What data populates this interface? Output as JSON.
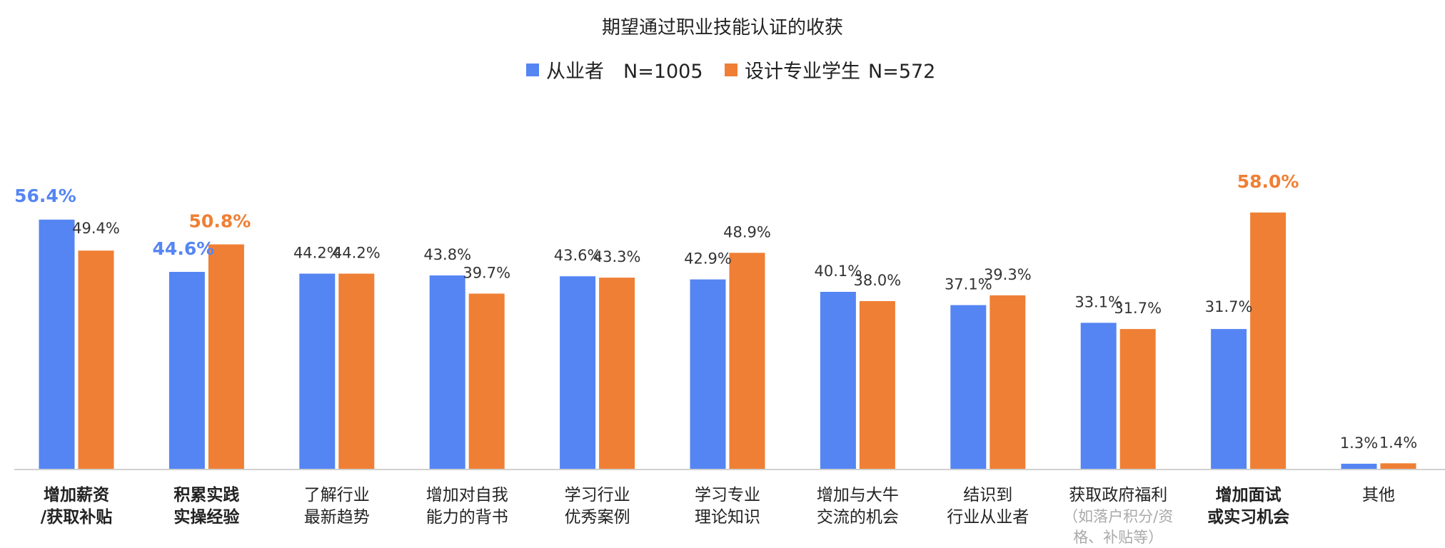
{
  "chart_data": {
    "type": "bar",
    "title": "期望通过职业技能认证的收获",
    "colors": {
      "practitioner": "#5585f3",
      "student": "#ef7f35"
    },
    "series": [
      {
        "name": "从业者 N=1005",
        "label": "从业者",
        "n": "N=1005",
        "color": "#5585f3",
        "values": [
          56.4,
          44.6,
          44.2,
          43.8,
          43.6,
          42.9,
          40.1,
          37.1,
          33.1,
          31.7,
          1.3
        ],
        "labels": [
          "56.4%",
          "44.6%",
          "44.2%",
          "43.8%",
          "43.6%",
          "42.9%",
          "40.1%",
          "37.1%",
          "33.1%",
          "31.7%",
          "1.3%"
        ]
      },
      {
        "name": "设计专业学生 N=572",
        "label": "设计专业学生",
        "n": "N=572",
        "color": "#ef7f35",
        "values": [
          49.4,
          50.8,
          44.2,
          39.7,
          43.3,
          48.9,
          38.0,
          39.3,
          31.7,
          58.0,
          1.4
        ],
        "labels": [
          "49.4%",
          "50.8%",
          "44.2%",
          "39.7%",
          "43.3%",
          "48.9%",
          "38.0%",
          "39.3%",
          "31.7%",
          "58.0%",
          "1.4%"
        ]
      }
    ],
    "categories": [
      {
        "lines": [
          "增加薪资",
          "/获取补贴"
        ],
        "bold": true,
        "note": []
      },
      {
        "lines": [
          "积累实践",
          "实操经验"
        ],
        "bold": true,
        "note": []
      },
      {
        "lines": [
          "了解行业",
          "最新趋势"
        ],
        "bold": false,
        "note": []
      },
      {
        "lines": [
          "增加对自我",
          "能力的背书"
        ],
        "bold": false,
        "note": []
      },
      {
        "lines": [
          "学习行业",
          "优秀案例"
        ],
        "bold": false,
        "note": []
      },
      {
        "lines": [
          "学习专业",
          "理论知识"
        ],
        "bold": false,
        "note": []
      },
      {
        "lines": [
          "增加与大牛",
          "交流的机会"
        ],
        "bold": false,
        "note": []
      },
      {
        "lines": [
          "结识到",
          "行业从业者"
        ],
        "bold": false,
        "note": []
      },
      {
        "lines": [
          "获取政府福利"
        ],
        "bold": false,
        "note": [
          "（如落户积分/资",
          "格、补贴等）"
        ]
      },
      {
        "lines": [
          "增加面试",
          "或实习机会"
        ],
        "bold": true,
        "note": []
      },
      {
        "lines": [
          "其他"
        ],
        "bold": false,
        "note": []
      }
    ],
    "highlights": [
      {
        "series": 0,
        "category": 0
      },
      {
        "series": 0,
        "category": 1
      },
      {
        "series": 1,
        "category": 1
      },
      {
        "series": 1,
        "category": 9
      }
    ],
    "ylim": [
      0,
      60
    ],
    "grid": false,
    "legend": "top-center"
  }
}
